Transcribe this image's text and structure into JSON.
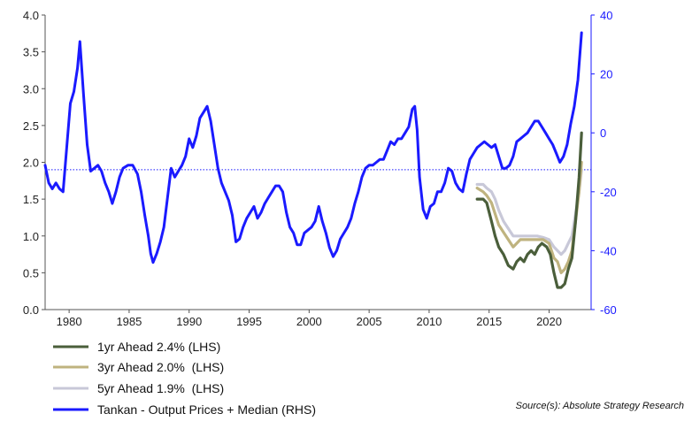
{
  "chart_data": {
    "type": "line",
    "title": "",
    "x_ticks": [
      1980,
      1985,
      1990,
      1995,
      2000,
      2005,
      2010,
      2015,
      2020
    ],
    "x_range": [
      1978,
      2023.5
    ],
    "left_axis": {
      "range": [
        0.0,
        4.0
      ],
      "ticks": [
        "0.0",
        "0.5",
        "1.0",
        "1.5",
        "2.0",
        "2.5",
        "3.0",
        "3.5",
        "4.0"
      ]
    },
    "right_axis": {
      "range": [
        -60,
        40
      ],
      "ticks": [
        "-60",
        "-40",
        "-20",
        "0",
        "20",
        "40"
      ],
      "color": "#1a1aff"
    },
    "reference_line": {
      "axis": "left",
      "value": 1.9,
      "style": "dotted",
      "color": "#1a1aff"
    },
    "series": [
      {
        "name": "1yr Ahead 2.4% (LHS)",
        "axis": "left",
        "color": "#4a5e3a",
        "points": [
          [
            2014.0,
            1.5
          ],
          [
            2014.5,
            1.5
          ],
          [
            2014.8,
            1.45
          ],
          [
            2015.2,
            1.2
          ],
          [
            2015.5,
            1.0
          ],
          [
            2015.8,
            0.85
          ],
          [
            2016.2,
            0.75
          ],
          [
            2016.6,
            0.6
          ],
          [
            2017.0,
            0.55
          ],
          [
            2017.3,
            0.65
          ],
          [
            2017.6,
            0.7
          ],
          [
            2017.9,
            0.65
          ],
          [
            2018.2,
            0.75
          ],
          [
            2018.5,
            0.8
          ],
          [
            2018.8,
            0.75
          ],
          [
            2019.1,
            0.85
          ],
          [
            2019.4,
            0.9
          ],
          [
            2019.8,
            0.85
          ],
          [
            2020.1,
            0.75
          ],
          [
            2020.4,
            0.5
          ],
          [
            2020.7,
            0.3
          ],
          [
            2021.0,
            0.3
          ],
          [
            2021.3,
            0.35
          ],
          [
            2021.6,
            0.55
          ],
          [
            2021.9,
            0.7
          ],
          [
            2022.2,
            1.2
          ],
          [
            2022.5,
            1.8
          ],
          [
            2022.7,
            2.4
          ]
        ]
      },
      {
        "name": "3yr Ahead 2.0%  (LHS)",
        "axis": "left",
        "color": "#bfb37f",
        "points": [
          [
            2014.0,
            1.65
          ],
          [
            2014.5,
            1.6
          ],
          [
            2014.8,
            1.55
          ],
          [
            2015.2,
            1.45
          ],
          [
            2015.5,
            1.3
          ],
          [
            2015.8,
            1.15
          ],
          [
            2016.2,
            1.05
          ],
          [
            2016.6,
            0.95
          ],
          [
            2017.0,
            0.85
          ],
          [
            2017.3,
            0.9
          ],
          [
            2017.6,
            0.95
          ],
          [
            2018.0,
            0.95
          ],
          [
            2018.5,
            0.95
          ],
          [
            2019.0,
            0.95
          ],
          [
            2019.5,
            0.95
          ],
          [
            2020.0,
            0.9
          ],
          [
            2020.4,
            0.7
          ],
          [
            2020.7,
            0.65
          ],
          [
            2021.0,
            0.5
          ],
          [
            2021.3,
            0.55
          ],
          [
            2021.6,
            0.65
          ],
          [
            2021.9,
            0.8
          ],
          [
            2022.2,
            1.2
          ],
          [
            2022.5,
            1.6
          ],
          [
            2022.7,
            2.0
          ]
        ]
      },
      {
        "name": "5yr Ahead 1.9%  (LHS)",
        "axis": "left",
        "color": "#c8c8d8",
        "points": [
          [
            2014.0,
            1.7
          ],
          [
            2014.5,
            1.7
          ],
          [
            2014.8,
            1.65
          ],
          [
            2015.2,
            1.6
          ],
          [
            2015.5,
            1.5
          ],
          [
            2015.8,
            1.35
          ],
          [
            2016.2,
            1.2
          ],
          [
            2016.6,
            1.1
          ],
          [
            2017.0,
            1.0
          ],
          [
            2017.5,
            1.0
          ],
          [
            2018.0,
            1.0
          ],
          [
            2018.5,
            1.0
          ],
          [
            2019.0,
            1.0
          ],
          [
            2019.5,
            0.98
          ],
          [
            2020.0,
            0.95
          ],
          [
            2020.4,
            0.85
          ],
          [
            2020.7,
            0.8
          ],
          [
            2021.0,
            0.75
          ],
          [
            2021.3,
            0.8
          ],
          [
            2021.6,
            0.9
          ],
          [
            2021.9,
            1.0
          ],
          [
            2022.2,
            1.3
          ],
          [
            2022.5,
            1.6
          ],
          [
            2022.7,
            1.9
          ]
        ]
      },
      {
        "name": "Tankan - Output Prices + Median (RHS)",
        "axis": "right",
        "color": "#1a1aff",
        "points": [
          [
            1978.0,
            -11
          ],
          [
            1978.3,
            -17
          ],
          [
            1978.6,
            -19
          ],
          [
            1978.9,
            -17
          ],
          [
            1979.2,
            -19
          ],
          [
            1979.5,
            -20
          ],
          [
            1979.8,
            -5
          ],
          [
            1980.1,
            10
          ],
          [
            1980.4,
            14
          ],
          [
            1980.7,
            22
          ],
          [
            1980.9,
            31
          ],
          [
            1981.2,
            13
          ],
          [
            1981.5,
            -4
          ],
          [
            1981.8,
            -13
          ],
          [
            1982.1,
            -12
          ],
          [
            1982.4,
            -11
          ],
          [
            1982.7,
            -13
          ],
          [
            1983.0,
            -17
          ],
          [
            1983.3,
            -20
          ],
          [
            1983.6,
            -24
          ],
          [
            1983.9,
            -20
          ],
          [
            1984.2,
            -15
          ],
          [
            1984.5,
            -12
          ],
          [
            1984.9,
            -11
          ],
          [
            1985.3,
            -11
          ],
          [
            1985.7,
            -14
          ],
          [
            1986.0,
            -20
          ],
          [
            1986.3,
            -28
          ],
          [
            1986.6,
            -35
          ],
          [
            1986.8,
            -41
          ],
          [
            1987.0,
            -44
          ],
          [
            1987.3,
            -41
          ],
          [
            1987.6,
            -37
          ],
          [
            1987.9,
            -32
          ],
          [
            1988.2,
            -22
          ],
          [
            1988.5,
            -12
          ],
          [
            1988.8,
            -15
          ],
          [
            1989.1,
            -13
          ],
          [
            1989.4,
            -11
          ],
          [
            1989.7,
            -8
          ],
          [
            1990.0,
            -2
          ],
          [
            1990.3,
            -5
          ],
          [
            1990.6,
            -1
          ],
          [
            1990.9,
            5
          ],
          [
            1991.2,
            7
          ],
          [
            1991.5,
            9
          ],
          [
            1991.8,
            4
          ],
          [
            1992.1,
            -4
          ],
          [
            1992.4,
            -12
          ],
          [
            1992.7,
            -17
          ],
          [
            1993.0,
            -20
          ],
          [
            1993.3,
            -23
          ],
          [
            1993.6,
            -28
          ],
          [
            1993.9,
            -37
          ],
          [
            1994.2,
            -36
          ],
          [
            1994.5,
            -32
          ],
          [
            1994.8,
            -29
          ],
          [
            1995.1,
            -27
          ],
          [
            1995.4,
            -25
          ],
          [
            1995.7,
            -29
          ],
          [
            1996.0,
            -27
          ],
          [
            1996.3,
            -24
          ],
          [
            1996.6,
            -22
          ],
          [
            1996.9,
            -20
          ],
          [
            1997.2,
            -18
          ],
          [
            1997.5,
            -18
          ],
          [
            1997.8,
            -20
          ],
          [
            1998.1,
            -27
          ],
          [
            1998.4,
            -32
          ],
          [
            1998.7,
            -34
          ],
          [
            1999.0,
            -38
          ],
          [
            1999.3,
            -38
          ],
          [
            1999.6,
            -34
          ],
          [
            1999.9,
            -33
          ],
          [
            2000.2,
            -32
          ],
          [
            2000.5,
            -30
          ],
          [
            2000.8,
            -25
          ],
          [
            2001.1,
            -30
          ],
          [
            2001.4,
            -34
          ],
          [
            2001.7,
            -39
          ],
          [
            2002.0,
            -42
          ],
          [
            2002.3,
            -40
          ],
          [
            2002.6,
            -36
          ],
          [
            2002.9,
            -34
          ],
          [
            2003.2,
            -32
          ],
          [
            2003.5,
            -29
          ],
          [
            2003.8,
            -24
          ],
          [
            2004.1,
            -20
          ],
          [
            2004.4,
            -15
          ],
          [
            2004.7,
            -12
          ],
          [
            2005.0,
            -11
          ],
          [
            2005.3,
            -11
          ],
          [
            2005.6,
            -10
          ],
          [
            2005.9,
            -9
          ],
          [
            2006.2,
            -9
          ],
          [
            2006.5,
            -6
          ],
          [
            2006.8,
            -3
          ],
          [
            2007.1,
            -4
          ],
          [
            2007.4,
            -2
          ],
          [
            2007.7,
            -2
          ],
          [
            2008.0,
            0
          ],
          [
            2008.3,
            2
          ],
          [
            2008.6,
            8
          ],
          [
            2008.8,
            9
          ],
          [
            2009.0,
            1
          ],
          [
            2009.2,
            -15
          ],
          [
            2009.5,
            -26
          ],
          [
            2009.8,
            -29
          ],
          [
            2010.1,
            -25
          ],
          [
            2010.4,
            -24
          ],
          [
            2010.7,
            -20
          ],
          [
            2011.0,
            -20
          ],
          [
            2011.3,
            -17
          ],
          [
            2011.6,
            -12
          ],
          [
            2011.9,
            -13
          ],
          [
            2012.2,
            -17
          ],
          [
            2012.5,
            -19
          ],
          [
            2012.8,
            -20
          ],
          [
            2013.1,
            -14
          ],
          [
            2013.4,
            -9
          ],
          [
            2013.7,
            -7
          ],
          [
            2014.0,
            -5
          ],
          [
            2014.3,
            -4
          ],
          [
            2014.6,
            -3
          ],
          [
            2014.9,
            -4
          ],
          [
            2015.2,
            -5
          ],
          [
            2015.5,
            -4
          ],
          [
            2015.8,
            -8
          ],
          [
            2016.1,
            -12
          ],
          [
            2016.4,
            -12
          ],
          [
            2016.7,
            -11
          ],
          [
            2017.0,
            -8
          ],
          [
            2017.3,
            -3
          ],
          [
            2017.6,
            -2
          ],
          [
            2017.9,
            -1
          ],
          [
            2018.2,
            0
          ],
          [
            2018.5,
            2
          ],
          [
            2018.8,
            4
          ],
          [
            2019.1,
            4
          ],
          [
            2019.4,
            2
          ],
          [
            2019.7,
            0
          ],
          [
            2020.0,
            -2
          ],
          [
            2020.3,
            -4
          ],
          [
            2020.6,
            -7
          ],
          [
            2020.9,
            -10
          ],
          [
            2021.2,
            -8
          ],
          [
            2021.5,
            -4
          ],
          [
            2021.8,
            3
          ],
          [
            2022.1,
            9
          ],
          [
            2022.4,
            18
          ],
          [
            2022.7,
            34
          ]
        ]
      }
    ],
    "legend_placement": "bottom-left",
    "grid": false,
    "source": "Source(s): Absolute Strategy Research"
  }
}
